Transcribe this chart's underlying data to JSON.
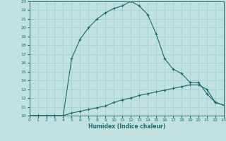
{
  "xlabel": "Humidex (Indice chaleur)",
  "xlim": [
    0,
    23
  ],
  "ylim": [
    10,
    23
  ],
  "xticks": [
    0,
    1,
    2,
    3,
    4,
    5,
    6,
    7,
    8,
    9,
    10,
    11,
    12,
    13,
    14,
    15,
    16,
    17,
    18,
    19,
    20,
    21,
    22,
    23
  ],
  "yticks": [
    10,
    11,
    12,
    13,
    14,
    15,
    16,
    17,
    18,
    19,
    20,
    21,
    22,
    23
  ],
  "bg_color": "#c2e0e0",
  "line_color": "#1a6b6b",
  "grid_color": "#9ecece",
  "upper_x": [
    0,
    1,
    2,
    3,
    4,
    5,
    6,
    7,
    8,
    9,
    10,
    11,
    12,
    13,
    14,
    15,
    16,
    17,
    18,
    19,
    20,
    21,
    22,
    23
  ],
  "upper_y": [
    10,
    10,
    10,
    10,
    10,
    16.5,
    18.7,
    20.0,
    21.0,
    21.7,
    22.2,
    22.5,
    23.0,
    22.5,
    21.5,
    19.3,
    16.5,
    15.3,
    14.8,
    13.8,
    13.8,
    12.5,
    11.5,
    11.2
  ],
  "lower_x": [
    0,
    1,
    2,
    3,
    4,
    5,
    6,
    7,
    8,
    9,
    10,
    11,
    12,
    13,
    14,
    15,
    16,
    17,
    18,
    19,
    20,
    21,
    22,
    23
  ],
  "lower_y": [
    10,
    10,
    10,
    10,
    10,
    10.3,
    10.5,
    10.7,
    10.9,
    11.1,
    11.5,
    11.8,
    12.0,
    12.3,
    12.5,
    12.7,
    12.9,
    13.1,
    13.3,
    13.5,
    13.5,
    13.0,
    11.5,
    11.2
  ]
}
